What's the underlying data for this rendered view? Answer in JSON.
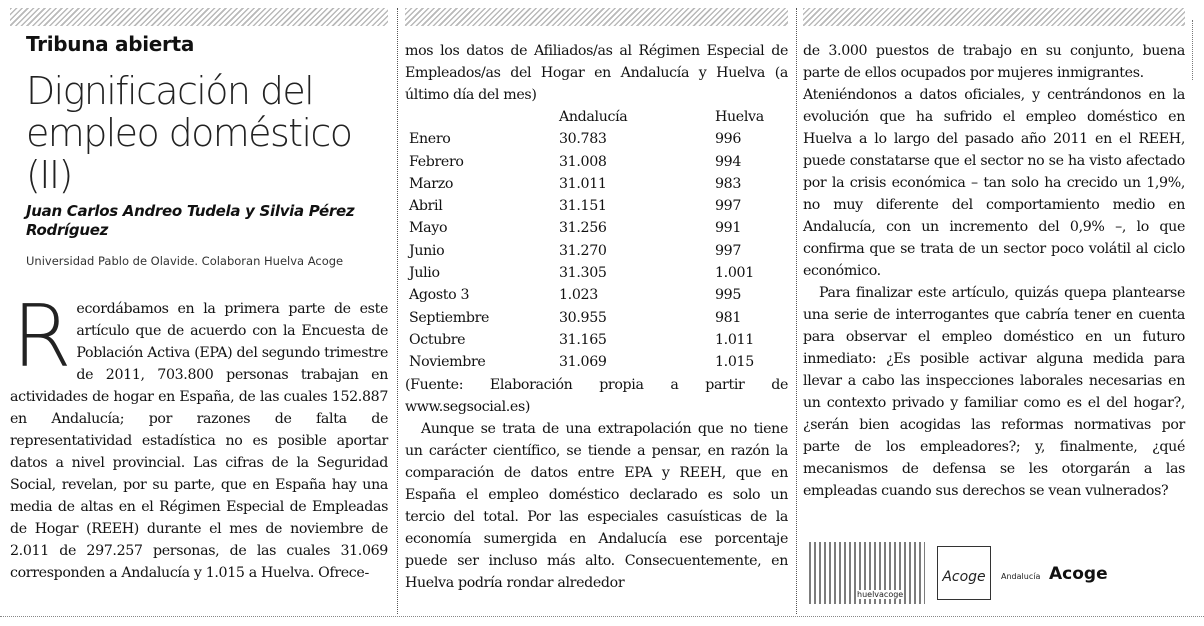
{
  "header": {
    "section": "Tribuna abierta",
    "headline": "Dignificación del empleo doméstico (II)",
    "authors": "Juan Carlos Andreo Tudela y Silvia Pérez Rodríguez",
    "affiliation": "Universidad Pablo de Olavide. Colaboran Huelva Acoge"
  },
  "col1": {
    "dropcap": "R",
    "para1": "ecordábamos en la primera parte de este artículo que de acuerdo con la Encuesta de Población Activa (EPA) del segundo trimestre de 2011, 703.800 personas trabajan en actividades de hogar en España, de las cuales 152.887 en Andalucía; por razones de falta de representatividad estadística no es posible aportar datos a nivel provincial. Las cifras de la Seguridad Social, revelan, por su parte, que en España hay una media de altas en el Régimen Especial de Empleadas de Hogar (REEH) durante el mes de noviembre de 2.011 de 297.257 personas, de las cuales 31.069 corresponden a Andalucía y 1.015 a Huelva. Ofrece-"
  },
  "col2": {
    "intro": "mos los datos de Afiliados/as al Régimen Especial de Empleados/as del Hogar en Andalucía y Huelva (a último día del mes)",
    "table": {
      "headers": [
        "",
        "Andalucía",
        "Huelva"
      ],
      "rows": [
        [
          "Enero",
          "30.783",
          "996"
        ],
        [
          "Febrero",
          "31.008",
          "994"
        ],
        [
          "Marzo",
          "31.011",
          "983"
        ],
        [
          "Abril",
          "31.151",
          "997"
        ],
        [
          "Mayo",
          "31.256",
          "991"
        ],
        [
          "Junio",
          "31.270",
          "997"
        ],
        [
          "Julio",
          "31.305",
          "1.001"
        ],
        [
          "Agosto 3",
          "1.023",
          "995"
        ],
        [
          "Septiembre",
          "30.955",
          "981"
        ],
        [
          "Octubre",
          "31.165",
          "1.011"
        ],
        [
          "Noviembre",
          "31.069",
          "1.015"
        ]
      ]
    },
    "source": "(Fuente: Elaboración propia a partir de www.segsocial.es)",
    "para2": "Aunque se trata de una extrapolación que no tiene un carácter científico, se tiende a pensar, en razón la comparación de datos entre EPA y REEH, que en España el empleo doméstico declarado es solo un tercio del total. Por las especiales casuísticas de la economía sumergida en Andalucía ese porcentaje puede ser incluso más alto. Consecuentemente, en Huelva podría rondar alrededor"
  },
  "col3": {
    "para1": "de 3.000 puestos de trabajo en su conjunto, buena parte de ellos ocupados por mujeres inmigrantes.",
    "para2": "Ateniéndonos a datos oficiales, y centrándonos en la evolución que ha sufrido el empleo doméstico en Huelva a lo largo del pasado año 2011 en el REEH, puede constatarse que el sector no se ha visto afectado por la crisis económica – tan solo ha crecido un 1,9%, no muy diferente del comportamiento medio en Andalucía, con un incremento del 0,9% –, lo que confirma que se trata de un sector poco volátil al ciclo económico.",
    "para3": "Para finalizar este artículo, quizás quepa plantearse una serie de interrogantes que cabría tener en cuenta para observar el empleo doméstico en un futuro inmediato: ¿Es posible activar alguna medida para llevar a cabo las inspecciones laborales necesarias en un contexto privado y familiar como es el del hogar?, ¿serán bien acogidas las reformas normativas por parte de los empleadores?; y, finalmente, ¿qué mecanismos de defensa se les otorgarán a las empleadas cuando sus derechos se vean vulnerados?",
    "logos": {
      "logo1_text": "huelvacoge",
      "logo2_text": "Acoge",
      "logo3_small": "Andalucía",
      "logo3_big": "Acoge"
    }
  }
}
